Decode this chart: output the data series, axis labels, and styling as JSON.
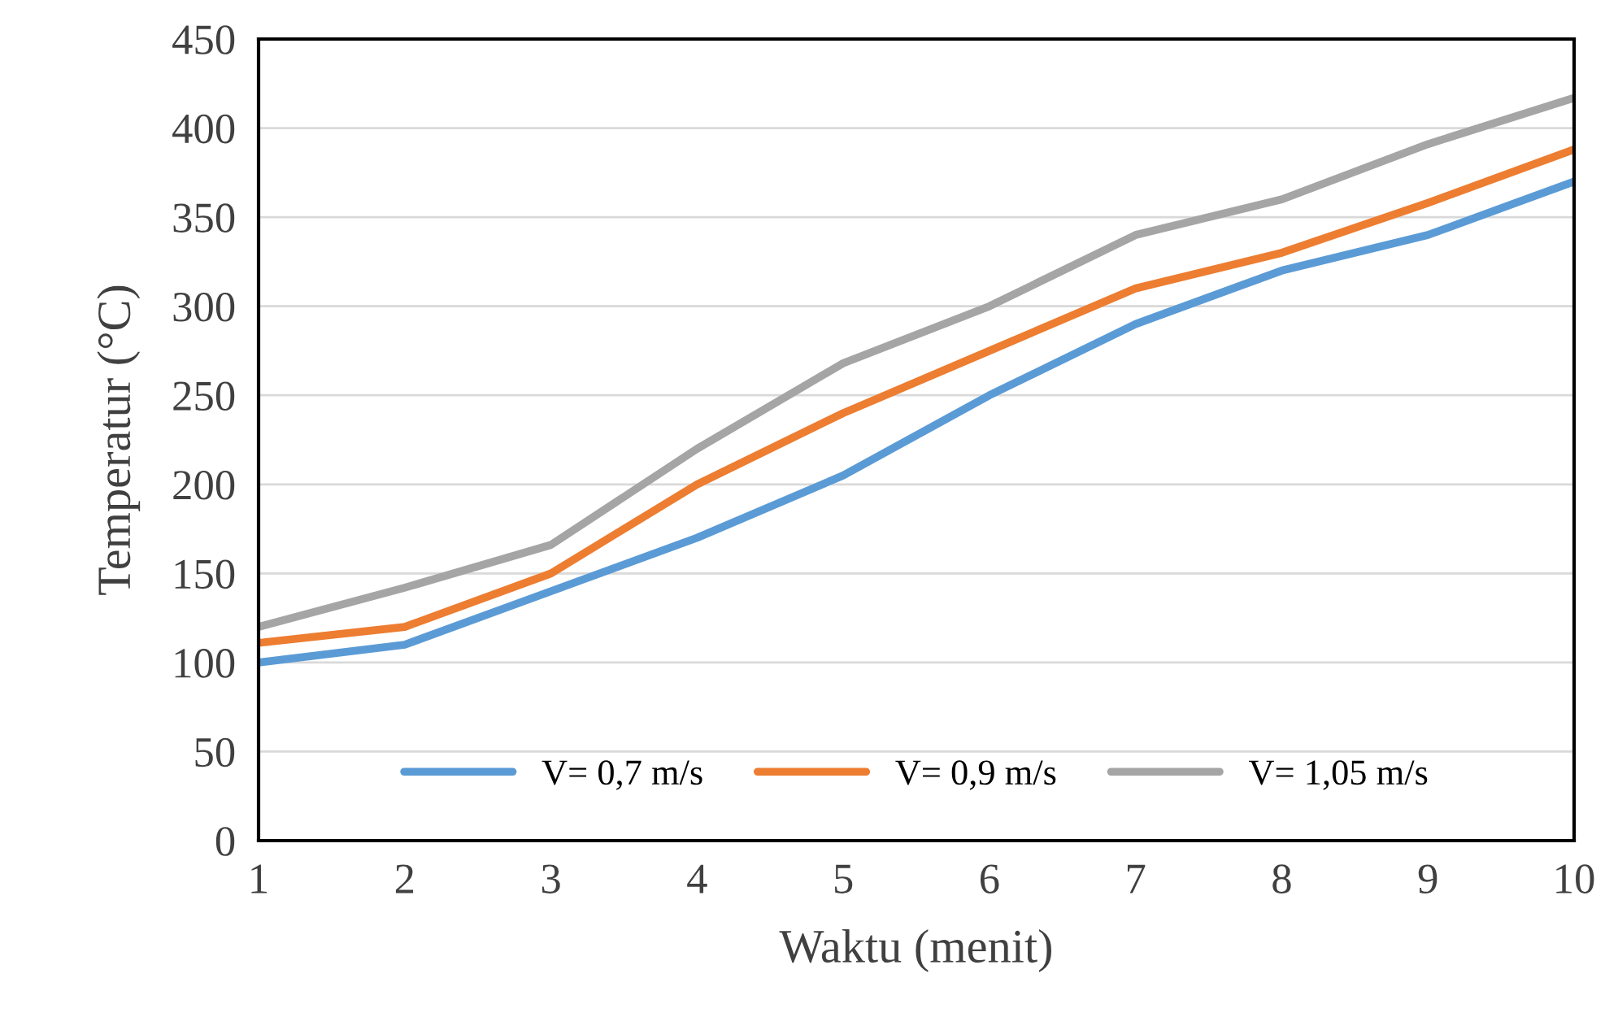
{
  "chart_data": {
    "type": "line",
    "xlabel": "Waktu (menit)",
    "ylabel": "Temperatur (°C)",
    "x": [
      1,
      2,
      3,
      4,
      5,
      6,
      7,
      8,
      9,
      10
    ],
    "series": [
      {
        "name": "V= 0,7 m/s",
        "color": "#5b9bd5",
        "values": [
          100,
          110,
          140,
          170,
          205,
          250,
          290,
          320,
          340,
          370
        ]
      },
      {
        "name": "V= 0,9 m/s",
        "color": "#ed7d31",
        "values": [
          111,
          120,
          150,
          200,
          240,
          275,
          310,
          330,
          358,
          388
        ]
      },
      {
        "name": "V= 1,05 m/s",
        "color": "#a5a5a5",
        "values": [
          120,
          142,
          166,
          220,
          268,
          300,
          340,
          360,
          391,
          417
        ]
      }
    ],
    "xlim": [
      1,
      10
    ],
    "xticks": [
      1,
      2,
      3,
      4,
      5,
      6,
      7,
      8,
      9,
      10
    ],
    "ylim": [
      0,
      450
    ],
    "yticks": [
      0,
      50,
      100,
      150,
      200,
      250,
      300,
      350,
      400,
      450
    ],
    "grid": "y",
    "legend": "bottom",
    "marker": "none",
    "line_style": "solid"
  }
}
